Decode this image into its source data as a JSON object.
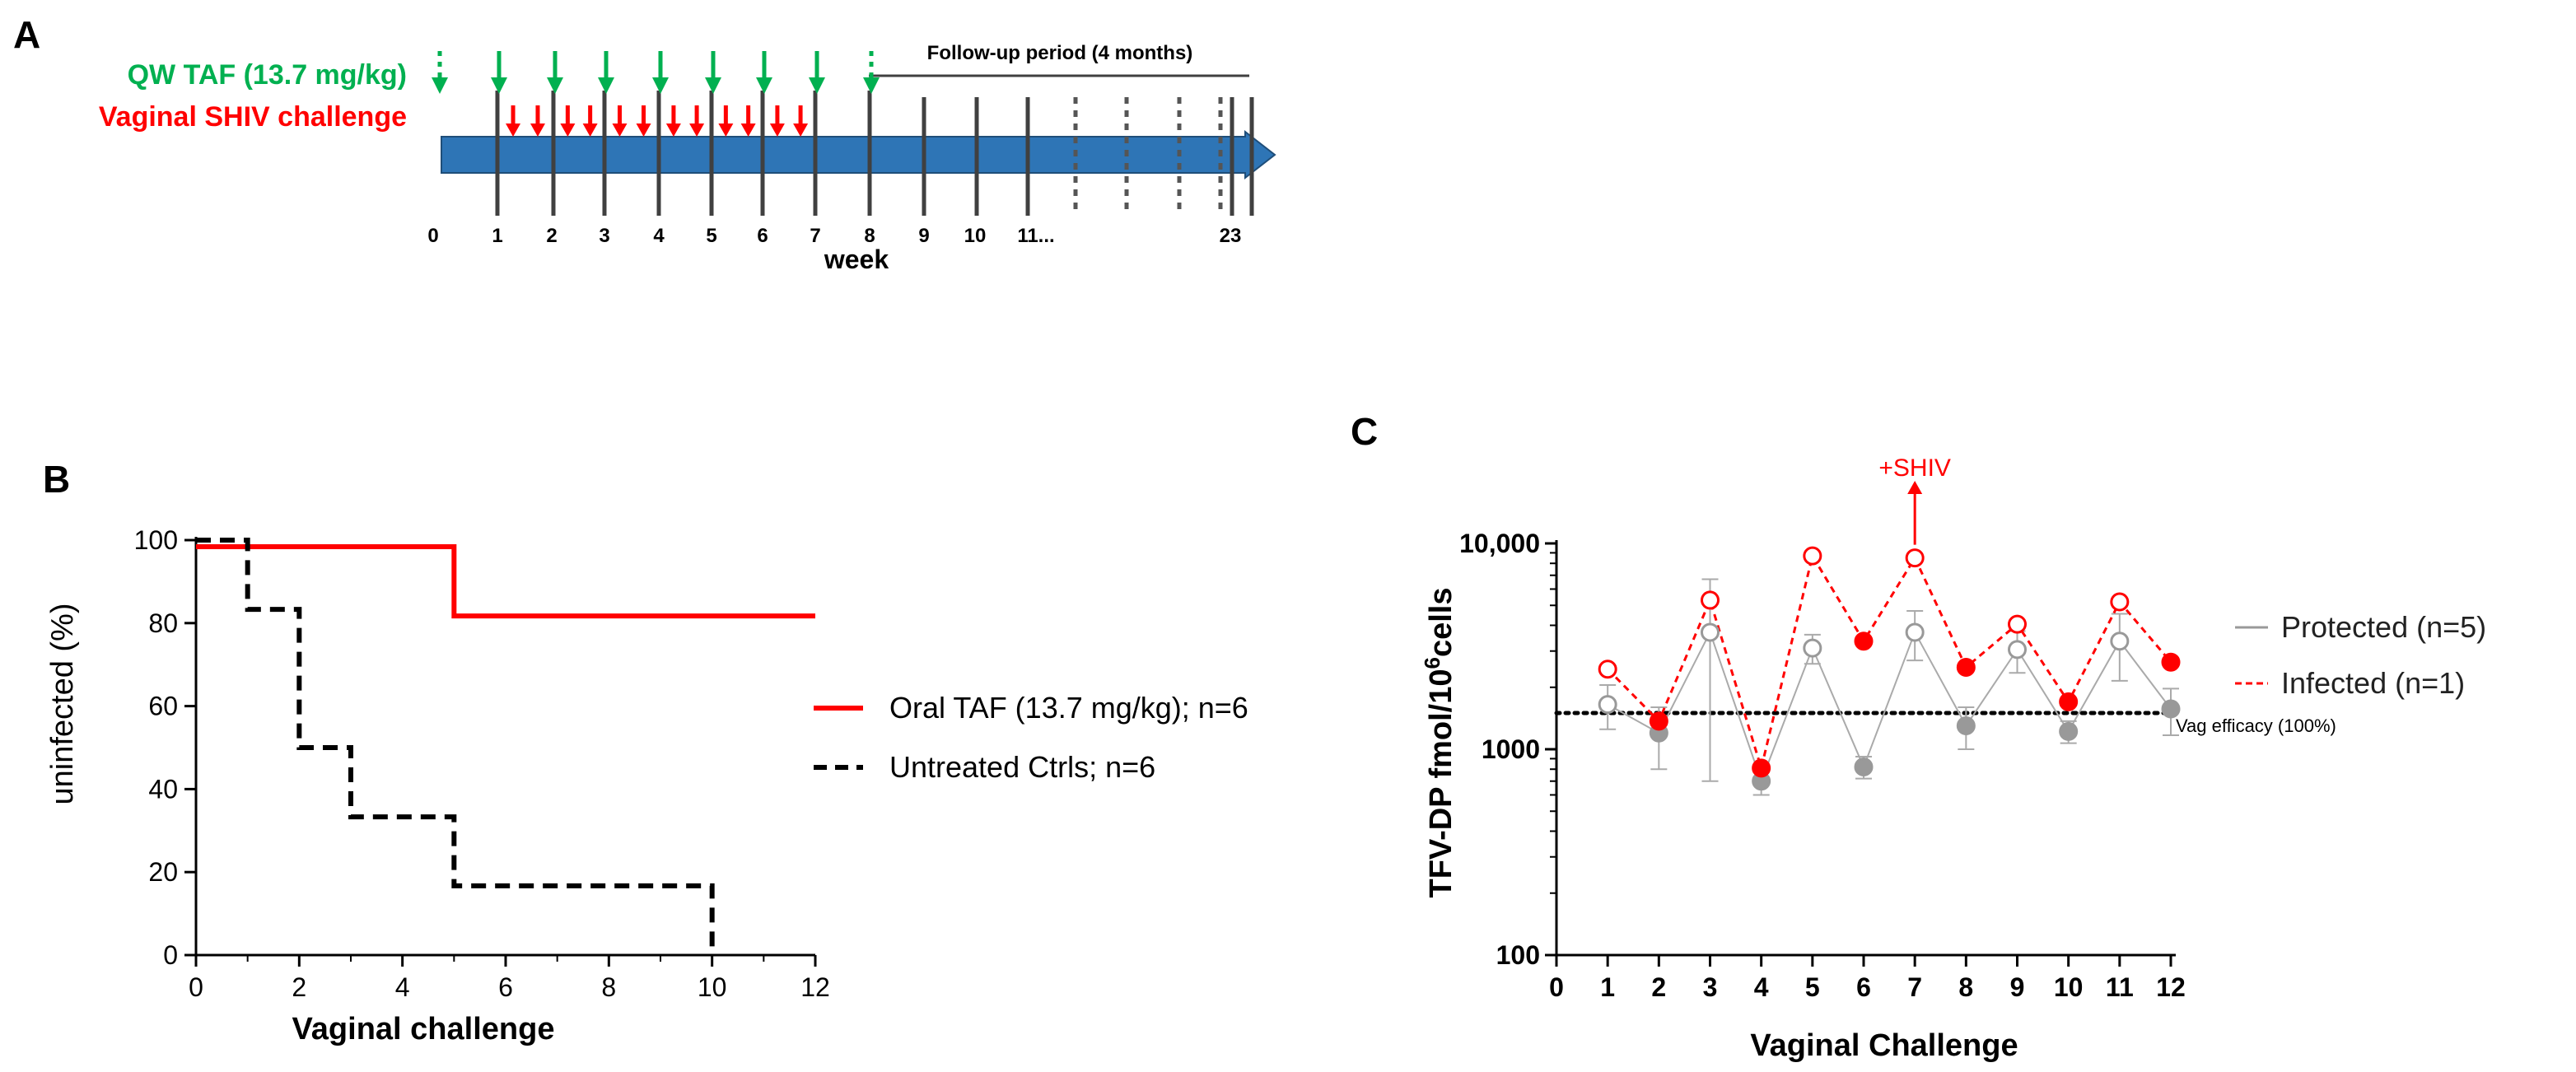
{
  "panelA": {
    "letter": "A",
    "dose_label": "QW TAF (13.7 mg/kg)",
    "challenge_label": "Vaginal SHIV challenge",
    "followup_label": "Follow-up period (4 months)",
    "axis_label": "week",
    "week_ticks": [
      "0",
      "1",
      "2",
      "3",
      "4",
      "5",
      "6",
      "7",
      "8",
      "9",
      "10",
      "11...",
      "23"
    ],
    "dose_weeks": [
      0,
      1,
      2,
      3,
      4,
      5,
      6,
      7,
      8
    ],
    "challenge_count": 12,
    "colors": {
      "dose": "#00b050",
      "challenge": "#ff0000",
      "arrow": "#2e75b6",
      "line": "#404040"
    }
  },
  "panelB": {
    "letter": "B",
    "chart_data": {
      "type": "line",
      "title": "",
      "xlabel": "Vaginal challenge",
      "ylabel": "uninfected (%)",
      "xlim": [
        0,
        12
      ],
      "ylim": [
        0,
        100
      ],
      "x_ticks": [
        "0",
        "2",
        "4",
        "6",
        "8",
        "10",
        "12"
      ],
      "y_ticks": [
        "0",
        "20",
        "40",
        "60",
        "80",
        "100"
      ],
      "series": [
        {
          "name": "Oral TAF (13.7 mg/kg); n=6",
          "style": "solid",
          "color": "#ff0000",
          "steps": [
            [
              0,
              100
            ],
            [
              5,
              100
            ],
            [
              5,
              83.3
            ],
            [
              12,
              83.3
            ]
          ]
        },
        {
          "name": "Untreated Ctrls; n=6",
          "style": "dashed",
          "color": "#000000",
          "steps": [
            [
              0,
              100
            ],
            [
              1,
              100
            ],
            [
              1,
              83.3
            ],
            [
              2,
              83.3
            ],
            [
              2,
              50
            ],
            [
              3,
              50
            ],
            [
              3,
              33.3
            ],
            [
              5,
              33.3
            ],
            [
              5,
              16.7
            ],
            [
              10,
              16.7
            ],
            [
              10,
              0
            ]
          ]
        }
      ],
      "legend": "right"
    }
  },
  "panelC": {
    "letter": "C",
    "annotation": "+SHIV",
    "chart_data": {
      "type": "scatter",
      "title": "",
      "xlabel": "Vaginal Challenge",
      "ylabel_main": "TFV-DP fmol/10",
      "ylabel_sup": "6",
      "ylabel_tail": "cells",
      "yscale": "log",
      "xlim": [
        0,
        12
      ],
      "ylim": [
        100,
        10000
      ],
      "x_ticks": [
        "0",
        "1",
        "2",
        "3",
        "4",
        "5",
        "6",
        "7",
        "8",
        "9",
        "10",
        "11",
        "12"
      ],
      "y_ticks": [
        "100",
        "1000",
        "10,000"
      ],
      "reference_line": {
        "label": "Vag efficacy (100%)",
        "value": 1500
      },
      "annotation_x": 7,
      "series": [
        {
          "name": "Protected (n=5)",
          "color": "#999999",
          "style": "solid",
          "x": [
            1,
            2,
            3,
            4,
            5,
            6,
            7,
            8,
            9,
            10,
            11,
            12
          ],
          "y": [
            1650,
            1200,
            3700,
            700,
            3100,
            820,
            3700,
            1300,
            3050,
            1220,
            3350,
            1570
          ],
          "err": [
            400,
            400,
            3000,
            100,
            500,
            100,
            1000,
            300,
            700,
            150,
            1200,
            400
          ],
          "filled": [
            false,
            true,
            false,
            true,
            false,
            true,
            false,
            true,
            false,
            true,
            false,
            true
          ]
        },
        {
          "name": "Infected (n=1)",
          "color": "#ff0000",
          "style": "dashed",
          "x": [
            1,
            2,
            3,
            4,
            5,
            6,
            7,
            8,
            9,
            10,
            11,
            12
          ],
          "y": [
            2450,
            1370,
            5300,
            810,
            8700,
            3350,
            8500,
            2500,
            4050,
            1700,
            5200,
            2650
          ],
          "filled": [
            false,
            true,
            false,
            true,
            false,
            true,
            false,
            true,
            false,
            true,
            false,
            true
          ]
        }
      ],
      "legend": "right"
    }
  }
}
